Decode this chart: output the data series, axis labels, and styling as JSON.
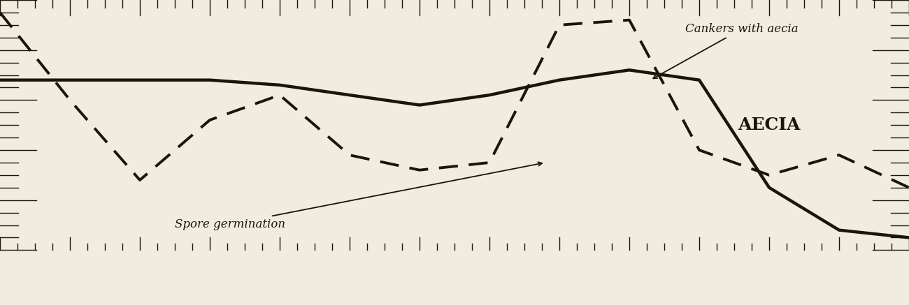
{
  "background_color": "#f0ece0",
  "line_color": "#1a1508",
  "fig_width": 13.0,
  "fig_height": 4.37,
  "dpi": 100,
  "solid_line": {
    "x": [
      0,
      1,
      2,
      3,
      4,
      5,
      6,
      7,
      8,
      9,
      10,
      11,
      12,
      13
    ],
    "y": [
      68,
      68,
      68,
      68,
      66,
      62,
      58,
      62,
      68,
      72,
      68,
      25,
      8,
      5
    ]
  },
  "dashed_line": {
    "x": [
      0,
      1,
      2,
      3,
      4,
      5,
      6,
      7,
      8,
      9,
      10,
      11,
      12,
      13
    ],
    "y": [
      95,
      60,
      28,
      52,
      62,
      38,
      32,
      35,
      90,
      92,
      40,
      30,
      38,
      25
    ]
  },
  "label_cankers": "Cankers with aecia",
  "label_spore": "Spore germination",
  "label_aecia": "AECIA",
  "tick_color": "#1a1508",
  "ruler_tick_count": 52,
  "font_size_labels": 12,
  "font_size_aecia": 18,
  "bottom_bar_height": 0.18,
  "bottom_bar_color": "#111111"
}
